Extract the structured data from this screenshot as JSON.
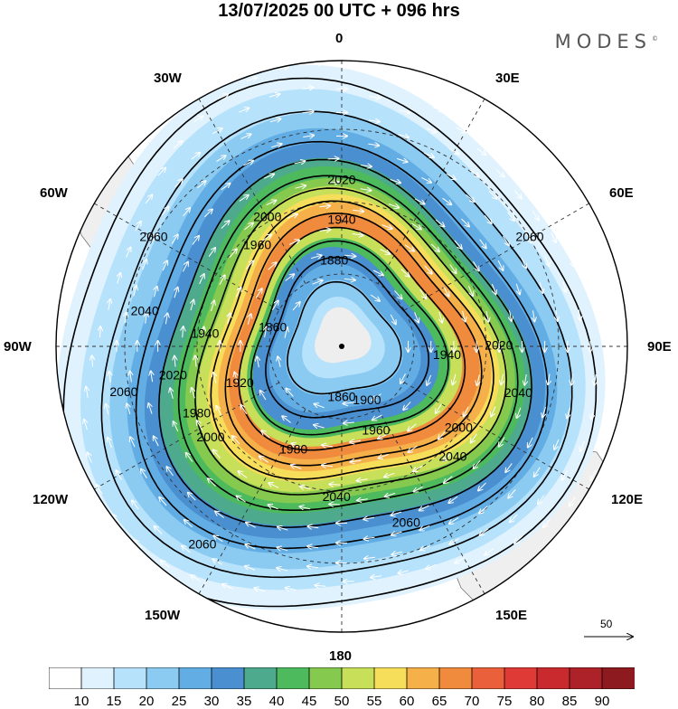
{
  "title": "13/07/2025  00 UTC  + 096 hrs",
  "brand": "MODES",
  "brand_mark": "©",
  "longitude_labels": {
    "n": "0",
    "ne30": "30E",
    "ne60": "60E",
    "e": "90E",
    "se120": "120E",
    "se150": "150E",
    "s": "180",
    "sw150": "150W",
    "sw120": "120W",
    "w": "90W",
    "nw60": "60W",
    "nw30": "30W"
  },
  "contour_levels": [
    "1860",
    "1880",
    "1900",
    "1920",
    "1940",
    "1960",
    "1980",
    "2000",
    "2020",
    "2040",
    "2060"
  ],
  "contour_labels": [
    {
      "text": "2060",
      "ang": -150,
      "r": 0.76
    },
    {
      "text": "2020",
      "ang": -90,
      "r": 0.58
    },
    {
      "text": "2000",
      "ang": -120,
      "r": 0.52
    },
    {
      "text": "1940",
      "ang": -90,
      "r": 0.44
    },
    {
      "text": "1960",
      "ang": -130,
      "r": 0.46
    },
    {
      "text": "1880",
      "ang": -95,
      "r": 0.3
    },
    {
      "text": "2040",
      "ang": -170,
      "r": 0.7
    },
    {
      "text": "2060",
      "ang": -30,
      "r": 0.76
    },
    {
      "text": "1940",
      "ang": -175,
      "r": 0.48
    },
    {
      "text": "1860",
      "ang": -165,
      "r": 0.25
    },
    {
      "text": "2020",
      "ang": -190,
      "r": 0.6
    },
    {
      "text": "2020",
      "ang": -360,
      "r": 0.55
    },
    {
      "text": "1940",
      "ang": -355,
      "r": 0.37
    },
    {
      "text": "2060",
      "ang": -192,
      "r": 0.78
    },
    {
      "text": "1920",
      "ang": -200,
      "r": 0.38
    },
    {
      "text": "1860",
      "ang": -270,
      "r": 0.18
    },
    {
      "text": "1900",
      "ang": -295,
      "r": 0.21
    },
    {
      "text": "1980",
      "ang": -245,
      "r": 0.4
    },
    {
      "text": "1960",
      "ang": -292,
      "r": 0.32
    },
    {
      "text": "1980",
      "ang": -205,
      "r": 0.56
    },
    {
      "text": "2000",
      "ang": -215,
      "r": 0.56
    },
    {
      "text": "2040",
      "ang": -315,
      "r": 0.55
    },
    {
      "text": "2000",
      "ang": -325,
      "r": 0.5
    },
    {
      "text": "2060",
      "ang": -290,
      "r": 0.66
    },
    {
      "text": "2040",
      "ang": -268,
      "r": 0.53
    },
    {
      "text": "2060",
      "ang": -235,
      "r": 0.85
    },
    {
      "text": "2040",
      "ang": -345,
      "r": 0.64
    }
  ],
  "reference_vector": "50",
  "colorbar": {
    "ticks": [
      "10",
      "15",
      "20",
      "25",
      "30",
      "35",
      "40",
      "45",
      "50",
      "55",
      "60",
      "65",
      "70",
      "75",
      "80",
      "85",
      "90"
    ],
    "colors": [
      "#ffffff",
      "#dff2fd",
      "#b7e2fb",
      "#8ccbf1",
      "#63ade5",
      "#4a8fcf",
      "#4daa8d",
      "#4dba5d",
      "#86c94f",
      "#c8df5a",
      "#f7de5a",
      "#f6b04a",
      "#f08a3c",
      "#e9603a",
      "#df3a35",
      "#c92a2e",
      "#ad2128",
      "#8c1a1f"
    ]
  }
}
